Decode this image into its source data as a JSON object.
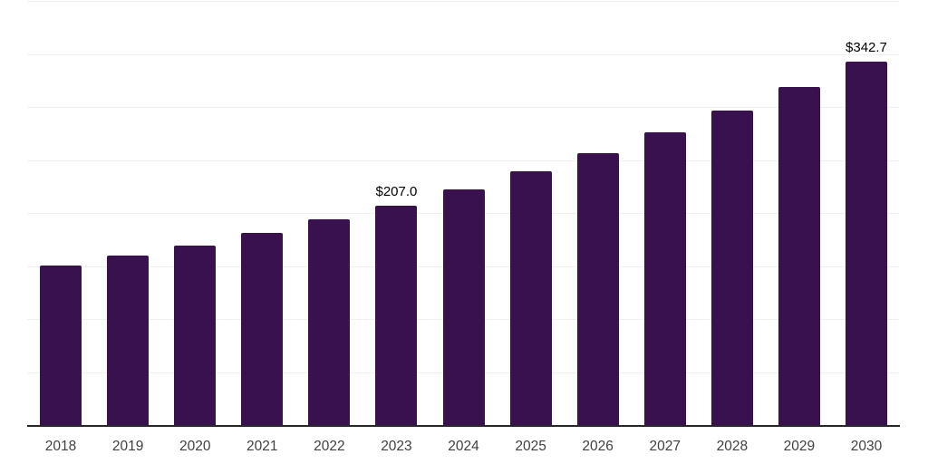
{
  "chart_data": {
    "type": "bar",
    "title": "",
    "xlabel": "",
    "ylabel": "",
    "categories": [
      "2018",
      "2019",
      "2020",
      "2021",
      "2022",
      "2023",
      "2024",
      "2025",
      "2026",
      "2027",
      "2028",
      "2029",
      "2030"
    ],
    "values": [
      150.1,
      160.0,
      169.4,
      180.9,
      193.7,
      207.0,
      222.4,
      239.0,
      256.8,
      276.0,
      296.6,
      318.8,
      342.7
    ],
    "bar_labels": [
      "",
      "",
      "",
      "",
      "",
      "$207.0",
      "",
      "",
      "",
      "",
      "",
      "",
      "$342.7"
    ],
    "ylim": [
      0,
      400
    ],
    "grid_step": 50,
    "grid": true,
    "legend": false,
    "y_axis_labels_visible": false,
    "colors": {
      "bar": "#38114E",
      "gridline": "#F0F0F0",
      "axis_line": "#262626",
      "value_label": "#000000",
      "tick_label": "#404040",
      "background": "#FFFFFF"
    }
  }
}
